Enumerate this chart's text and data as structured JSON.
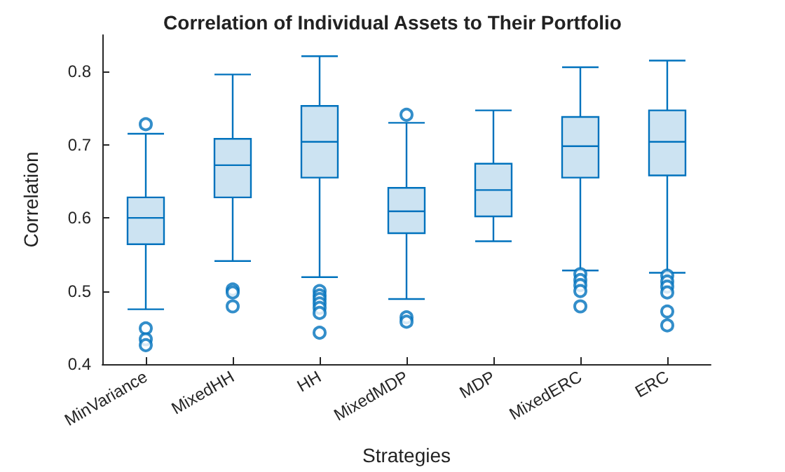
{
  "chart_data": {
    "type": "box",
    "title": "Correlation of Individual Assets to Their Portfolio",
    "xlabel": "Strategies",
    "ylabel": "Correlation",
    "categories": [
      "MinVariance",
      "MixedHH",
      "HH",
      "MixedMDP",
      "MDP",
      "MixedERC",
      "ERC"
    ],
    "color": "#0072bd",
    "ylim": [
      0.4,
      0.85
    ],
    "yticks": [
      0.4,
      0.5,
      0.6,
      0.7,
      0.8
    ],
    "grid": false,
    "boxes": [
      {
        "low": 0.475,
        "q1": 0.564,
        "median": 0.6,
        "q3": 0.628,
        "high": 0.715,
        "outliers": [
          0.728,
          0.449,
          0.434,
          0.426
        ]
      },
      {
        "low": 0.541,
        "q1": 0.628,
        "median": 0.672,
        "q3": 0.708,
        "high": 0.796,
        "outliers": [
          0.502,
          0.498,
          0.479
        ]
      },
      {
        "low": 0.519,
        "q1": 0.655,
        "median": 0.704,
        "q3": 0.753,
        "high": 0.821,
        "outliers": [
          0.5,
          0.494,
          0.489,
          0.483,
          0.477,
          0.47,
          0.443
        ]
      },
      {
        "low": 0.489,
        "q1": 0.579,
        "median": 0.609,
        "q3": 0.641,
        "high": 0.73,
        "outliers": [
          0.741,
          0.464,
          0.458
        ]
      },
      {
        "low": 0.568,
        "q1": 0.602,
        "median": 0.638,
        "q3": 0.674,
        "high": 0.747
      },
      {
        "low": 0.528,
        "q1": 0.655,
        "median": 0.698,
        "q3": 0.738,
        "high": 0.806,
        "outliers": [
          0.523,
          0.515,
          0.508,
          0.5,
          0.479
        ]
      },
      {
        "low": 0.525,
        "q1": 0.658,
        "median": 0.704,
        "q3": 0.747,
        "high": 0.815,
        "outliers": [
          0.521,
          0.513,
          0.506,
          0.498,
          0.472,
          0.453
        ]
      }
    ]
  }
}
